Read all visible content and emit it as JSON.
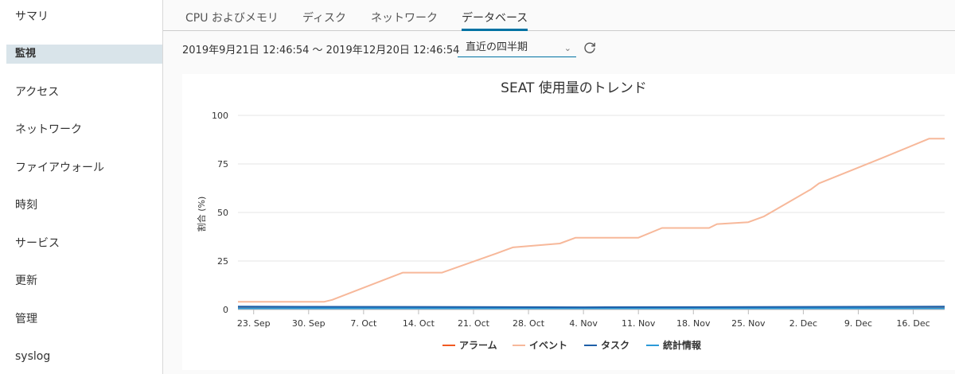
{
  "sidebar": {
    "items": [
      {
        "label": "サマリ",
        "active": false
      },
      {
        "label": "監視",
        "active": true
      },
      {
        "label": "アクセス",
        "active": false
      },
      {
        "label": "ネットワーク",
        "active": false
      },
      {
        "label": "ファイアウォール",
        "active": false
      },
      {
        "label": "時刻",
        "active": false
      },
      {
        "label": "サービス",
        "active": false
      },
      {
        "label": "更新",
        "active": false
      },
      {
        "label": "管理",
        "active": false
      },
      {
        "label": "syslog",
        "active": false
      }
    ]
  },
  "tabs": [
    {
      "label": "CPU およびメモリ",
      "active": false
    },
    {
      "label": "ディスク",
      "active": false
    },
    {
      "label": "ネットワーク",
      "active": false
    },
    {
      "label": "データベース",
      "active": true
    }
  ],
  "toolbar": {
    "range_text": "2019年9月21日 12:46:54 ～ 2019年12月20日 12:46:54",
    "period_value": "直近の四半期",
    "refresh_icon": "refresh-icon"
  },
  "chart_data": {
    "type": "line",
    "title": "SEAT 使用量のトレンド",
    "ylabel": "割合 (%)",
    "xlabel": "",
    "ylim": [
      0,
      100
    ],
    "yticks": [
      0,
      25,
      50,
      75,
      100
    ],
    "xlim": [
      "2019-09-21",
      "2019-12-20"
    ],
    "xticks": [
      {
        "date": "2019-09-23",
        "label": "23. Sep"
      },
      {
        "date": "2019-09-30",
        "label": "30. Sep"
      },
      {
        "date": "2019-10-07",
        "label": "7. Oct"
      },
      {
        "date": "2019-10-14",
        "label": "14. Oct"
      },
      {
        "date": "2019-10-21",
        "label": "21. Oct"
      },
      {
        "date": "2019-10-28",
        "label": "28. Oct"
      },
      {
        "date": "2019-11-04",
        "label": "4. Nov"
      },
      {
        "date": "2019-11-11",
        "label": "11. Nov"
      },
      {
        "date": "2019-11-18",
        "label": "18. Nov"
      },
      {
        "date": "2019-11-25",
        "label": "25. Nov"
      },
      {
        "date": "2019-12-02",
        "label": "2. Dec"
      },
      {
        "date": "2019-12-09",
        "label": "9. Dec"
      },
      {
        "date": "2019-12-16",
        "label": "16. Dec"
      }
    ],
    "grid": true,
    "legend_position": "bottom-center",
    "series": [
      {
        "name": "アラーム",
        "color": "#f15a22",
        "points": [
          [
            "2019-09-21",
            1
          ],
          [
            "2019-12-20",
            1
          ]
        ]
      },
      {
        "name": "イベント",
        "color": "#f7b89a",
        "points": [
          [
            "2019-09-21",
            4
          ],
          [
            "2019-10-02",
            4
          ],
          [
            "2019-10-03",
            5
          ],
          [
            "2019-10-12",
            19
          ],
          [
            "2019-10-17",
            19
          ],
          [
            "2019-10-24",
            29
          ],
          [
            "2019-10-26",
            32
          ],
          [
            "2019-11-01",
            34
          ],
          [
            "2019-11-03",
            37
          ],
          [
            "2019-11-05",
            37
          ],
          [
            "2019-11-11",
            37
          ],
          [
            "2019-11-14",
            42
          ],
          [
            "2019-11-20",
            42
          ],
          [
            "2019-11-21",
            44
          ],
          [
            "2019-11-25",
            45
          ],
          [
            "2019-11-27",
            48
          ],
          [
            "2019-12-03",
            62
          ],
          [
            "2019-12-04",
            65
          ],
          [
            "2019-12-12",
            78
          ],
          [
            "2019-12-18",
            88
          ],
          [
            "2019-12-20",
            88
          ]
        ]
      },
      {
        "name": "タスク",
        "color": "#1f5fa8",
        "points": [
          [
            "2019-09-21",
            1.5
          ],
          [
            "2019-11-04",
            1.2
          ],
          [
            "2019-12-20",
            1.5
          ]
        ]
      },
      {
        "name": "統計情報",
        "color": "#2c9ad8",
        "points": [
          [
            "2019-09-21",
            0.6
          ],
          [
            "2019-12-20",
            0.6
          ]
        ]
      }
    ]
  }
}
